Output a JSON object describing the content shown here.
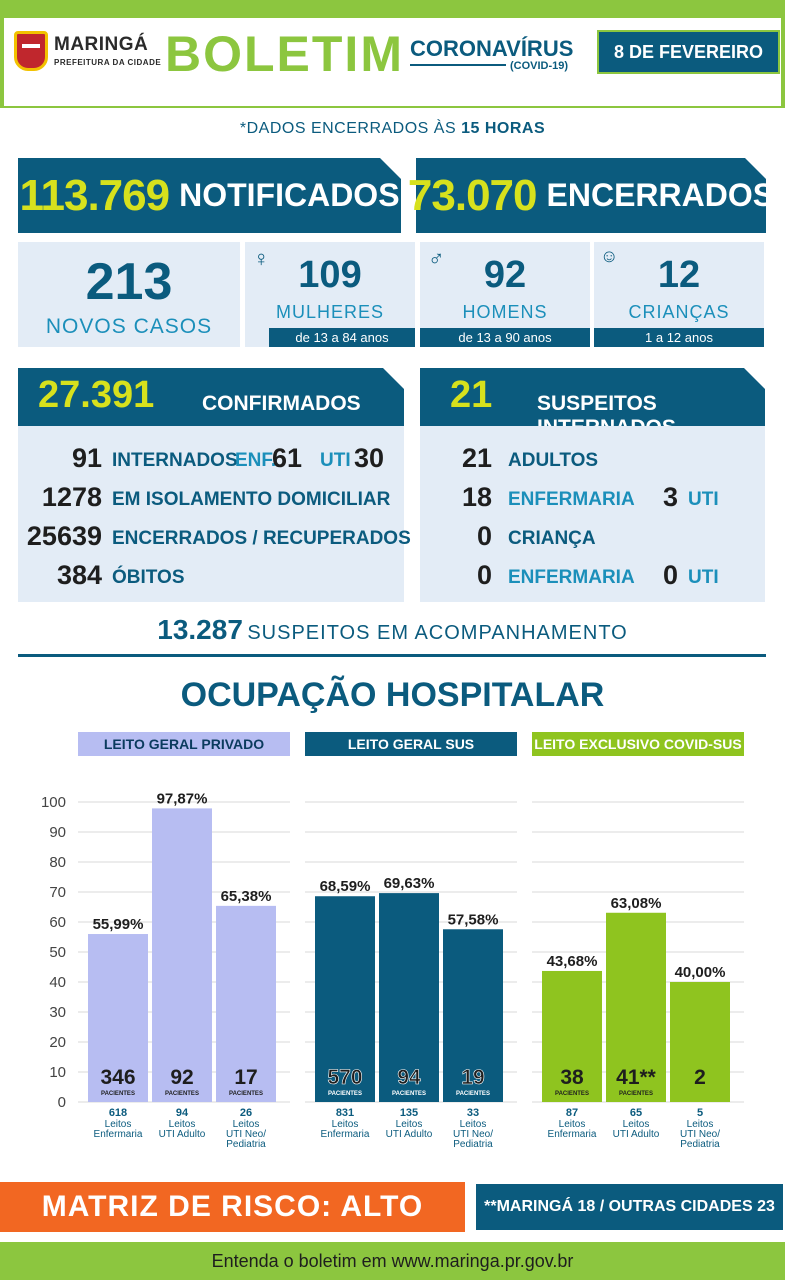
{
  "header": {
    "brand_name": "MARINGÁ",
    "brand_sub": "PREFEITURA DA CIDADE",
    "title": "BOLETIM",
    "topic": "CORONAVÍRUS",
    "topic_sub": "(COVID-19)",
    "date": "8 DE FEVEREIRO"
  },
  "cutoff": {
    "prefix": "*DADOS ENCERRADOS ÀS ",
    "time": "15 HORAS"
  },
  "totals": {
    "notified_num": "113.769",
    "notified_lbl": "NOTIFICADOS",
    "closed_num": "73.070",
    "closed_lbl": "ENCERRADOS"
  },
  "new_cases": {
    "total": "213",
    "total_lbl": "NOVOS CASOS",
    "women": "109",
    "women_lbl": "MULHERES",
    "women_age": "de 13 a 84 anos",
    "men": "92",
    "men_lbl": "HOMENS",
    "men_age": "de 13 a 90 anos",
    "children": "12",
    "children_lbl": "CRIANÇAS",
    "children_age": "1 a 12 anos"
  },
  "confirmed": {
    "num": "27.391",
    "lbl": "CONFIRMADOS",
    "hosp_num": "91",
    "hosp_lbl": "INTERNADOS",
    "enf_lbl": "ENF.",
    "enf_num": "61",
    "uti_lbl": "UTI",
    "uti_num": "30",
    "iso_num": "1278",
    "iso_lbl": "EM ISOLAMENTO DOMICILIAR",
    "rec_num": "25639",
    "rec_lbl": "ENCERRADOS / RECUPERADOS",
    "deaths_num": "384",
    "deaths_lbl": "ÓBITOS"
  },
  "suspects": {
    "num": "21",
    "lbl": "SUSPEITOS INTERNADOS",
    "adults_num": "21",
    "adults_lbl": "ADULTOS",
    "adult_enf_num": "18",
    "adult_enf_lbl": "ENFERMARIA",
    "adult_uti_num": "3",
    "adult_uti_lbl": "UTI",
    "child_num": "0",
    "child_lbl": "CRIANÇA",
    "child_enf_num": "0",
    "child_enf_lbl": "ENFERMARIA",
    "child_uti_num": "0",
    "child_uti_lbl": "UTI"
  },
  "follow_up": {
    "num": "13.287",
    "lbl": "SUSPEITOS EM ACOMPANHAMENTO"
  },
  "occupancy_title": "OCUPAÇÃO HOSPITALAR",
  "colors": {
    "navy": "#0b5b7e",
    "green": "#8cc63f",
    "lavender": "#b7bdf2",
    "lime": "#8fc41f",
    "orange": "#f26722"
  },
  "chart_data": {
    "type": "bar",
    "ylim": [
      0,
      100
    ],
    "yticks": [
      "0",
      "10",
      "20",
      "30",
      "40",
      "50",
      "60",
      "70",
      "80",
      "90",
      "100"
    ],
    "unit_lbl": "PACIENTES",
    "groups": [
      {
        "name": "LEITO GERAL PRIVADO",
        "color": "#b7bdf2",
        "head_text": "#0b3b5e",
        "bars": [
          {
            "value": 55.99,
            "label": "55,99%",
            "patients": "346",
            "beds": "618",
            "desc": "Leitos Enfermaria"
          },
          {
            "value": 97.87,
            "label": "97,87%",
            "patients": "92",
            "beds": "94",
            "desc": "Leitos UTI Adulto"
          },
          {
            "value": 65.38,
            "label": "65,38%",
            "patients": "17",
            "beds": "26",
            "desc": "Leitos UTI Neo/ Pediatria"
          }
        ]
      },
      {
        "name": "LEITO GERAL SUS",
        "color": "#0b5b7e",
        "head_text": "#ffffff",
        "bars": [
          {
            "value": 68.59,
            "label": "68,59%",
            "patients": "570",
            "beds": "831",
            "desc": "Leitos Enfermaria"
          },
          {
            "value": 69.63,
            "label": "69,63%",
            "patients": "94",
            "beds": "135",
            "desc": "Leitos UTI Adulto"
          },
          {
            "value": 57.58,
            "label": "57,58%",
            "patients": "19",
            "beds": "33",
            "desc": "Leitos UTI Neo/ Pediatria"
          }
        ]
      },
      {
        "name": "LEITO EXCLUSIVO COVID-SUS",
        "color": "#8fc41f",
        "head_text": "#ffffff",
        "bars": [
          {
            "value": 43.68,
            "label": "43,68%",
            "patients": "38",
            "beds": "87",
            "desc": "Leitos Enfermaria"
          },
          {
            "value": 63.08,
            "label": "63,08%",
            "patients": "41**",
            "beds": "65",
            "desc": "Leitos UTI Adulto"
          },
          {
            "value": 40.0,
            "label": "40,00%",
            "patients": "2",
            "beds": "5",
            "desc": "Leitos UTI Neo/ Pediatria",
            "no_unit": true
          }
        ]
      }
    ]
  },
  "risk": "MATRIZ DE RISCO: ALTO",
  "cities": "**MARINGÁ 18 / OUTRAS CIDADES 23",
  "footer": "Entenda o boletim em www.maringa.pr.gov.br"
}
